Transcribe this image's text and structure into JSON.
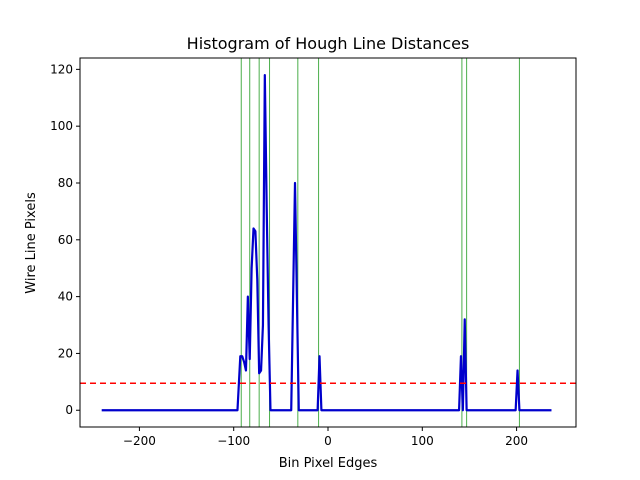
{
  "chart_data": {
    "type": "line",
    "title": "Histogram of Hough Line Distances",
    "xlabel": "Bin Pixel Edges",
    "ylabel": "Wire Line Pixels",
    "xlim": [
      -263,
      263
    ],
    "ylim": [
      -5.9,
      124
    ],
    "xticks": [
      -200,
      -100,
      0,
      100,
      200
    ],
    "xtick_labels": [
      "−200",
      "−100",
      "0",
      "100",
      "200"
    ],
    "yticks": [
      0,
      20,
      40,
      60,
      80,
      100,
      120
    ],
    "ytick_labels": [
      "0",
      "20",
      "40",
      "60",
      "80",
      "100",
      "120"
    ],
    "grid": false,
    "legend": "none",
    "series": [
      {
        "color": "#0000cc",
        "x": [
          -240,
          -96,
          -93,
          -91,
          -89,
          -87,
          -85,
          -83,
          -81,
          -79,
          -77,
          -75,
          -73,
          -71,
          -69,
          -67,
          -65,
          -63,
          -61,
          -59,
          -57,
          -55,
          -53,
          -51,
          -49,
          -47,
          -45,
          -43,
          -41,
          -39,
          -37,
          -35,
          -33,
          -31,
          -29,
          -27,
          -25,
          -23,
          -21,
          -19,
          -17,
          -15,
          -13,
          -11,
          -9,
          -7,
          -5,
          -3,
          139,
          141,
          143,
          145,
          147,
          149,
          151,
          153,
          155,
          157,
          197,
          199,
          201,
          203,
          205,
          237
        ],
        "y": [
          0,
          0,
          19,
          19,
          17,
          14,
          40,
          18,
          50,
          64,
          63,
          46,
          13,
          14,
          30,
          118,
          71,
          30,
          0,
          0,
          0,
          0,
          0,
          0,
          0,
          0,
          0,
          0,
          0,
          0,
          40,
          80,
          40,
          0,
          0,
          0,
          0,
          0,
          0,
          0,
          0,
          0,
          0,
          0,
          19,
          0,
          0,
          0,
          0,
          19,
          0,
          32,
          0,
          0,
          0,
          0,
          0,
          0,
          0,
          0,
          14,
          0,
          0,
          0
        ]
      }
    ],
    "threshold": {
      "y": 9.5,
      "color": "#ff0000",
      "style": "dashed"
    },
    "vertical_lines": {
      "x": [
        -92,
        -83,
        -73,
        -62,
        -32,
        -10,
        142,
        147,
        203
      ],
      "color": "#2ca02c"
    }
  }
}
